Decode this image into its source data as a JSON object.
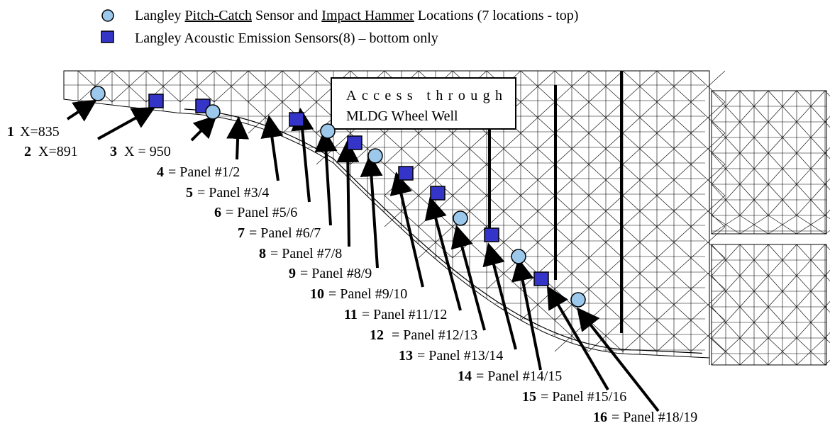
{
  "colors": {
    "pitch_catch_fill": "#9cc8ec",
    "acoustic_fill": "#3434c8",
    "mesh": "#000000",
    "arrow": "#000000"
  },
  "legend": {
    "pitch_catch": {
      "prefix": "Langley ",
      "term1": "Pitch-Catch",
      "middle": " Sensor and ",
      "term2": "Impact Hammer",
      "suffix": " Locations (7 locations - top)"
    },
    "acoustic": {
      "text": "Langley Acoustic Emission Sensors(8) – bottom only"
    }
  },
  "callout": {
    "line1": "Access through",
    "line2": "MLDG Wheel Well"
  },
  "locations": [
    {
      "num": "1",
      "desc": "X=835"
    },
    {
      "num": "2",
      "desc": "X=891"
    },
    {
      "num": "3",
      "desc": "X = 950"
    },
    {
      "num": "4",
      "desc": "= Panel #1/2"
    },
    {
      "num": "5",
      "desc": "= Panel #3/4"
    },
    {
      "num": "6",
      "desc": "= Panel #5/6"
    },
    {
      "num": "7",
      "desc": "= Panel #6/7"
    },
    {
      "num": "8",
      "desc": "= Panel #7/8"
    },
    {
      "num": "9",
      "desc": "= Panel #8/9"
    },
    {
      "num": "10",
      "desc": "= Panel #9/10"
    },
    {
      "num": "11",
      "desc": "= Panel #11/12"
    },
    {
      "num": "12",
      "desc": " = Panel #12/13"
    },
    {
      "num": "13",
      "desc": "= Panel #13/14"
    },
    {
      "num": "14",
      "desc": "= Panel #14/15"
    },
    {
      "num": "15",
      "desc": "=  Panel #15/16"
    },
    {
      "num": "16",
      "desc": "= Panel #18/19"
    }
  ],
  "sensors": [
    {
      "type": "pitch-catch"
    },
    {
      "type": "acoustic"
    },
    {
      "type": "acoustic"
    },
    {
      "type": "pitch-catch"
    },
    {
      "type": "acoustic"
    },
    {
      "type": "pitch-catch"
    },
    {
      "type": "acoustic"
    },
    {
      "type": "pitch-catch"
    },
    {
      "type": "acoustic"
    },
    {
      "type": "acoustic"
    },
    {
      "type": "pitch-catch"
    },
    {
      "type": "acoustic"
    },
    {
      "type": "pitch-catch"
    },
    {
      "type": "acoustic"
    },
    {
      "type": "pitch-catch"
    }
  ]
}
